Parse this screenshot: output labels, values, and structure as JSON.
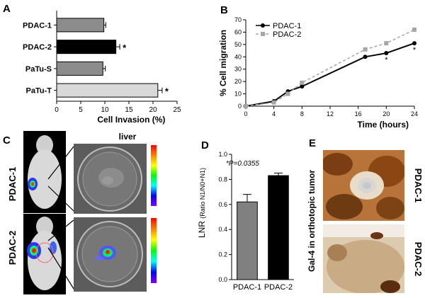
{
  "panel_labels": {
    "a": "A",
    "b": "B",
    "c": "C",
    "d": "D",
    "e": "E"
  },
  "chart_data": [
    {
      "panel": "A",
      "type": "bar",
      "orientation": "horizontal",
      "categories": [
        "PDAC-1",
        "PDAC-2",
        "PaTu-S",
        "PaTu-T"
      ],
      "values": [
        9.8,
        12.3,
        9.6,
        21
      ],
      "errors": [
        0.4,
        0.8,
        0.5,
        0.9
      ],
      "significance": [
        "",
        "*",
        "",
        "*"
      ],
      "colors": [
        "#8c8c8c",
        "#000000",
        "#8c8c8c",
        "#d9d9d9"
      ],
      "xlabel": "Cell Invasion (%)",
      "ylabel": "",
      "xlim": [
        0,
        25
      ],
      "xticks": [
        0,
        5,
        10,
        15,
        20,
        25
      ]
    },
    {
      "panel": "B",
      "type": "line",
      "xlabel": "Time (hours)",
      "ylabel": "% Cell migration",
      "xlim": [
        0,
        24
      ],
      "ylim": [
        0,
        70
      ],
      "xticks": [
        0,
        4,
        8,
        12,
        16,
        20,
        24
      ],
      "yticks": [
        0,
        10,
        20,
        30,
        40,
        50,
        60,
        70
      ],
      "legend_position": "top-left",
      "series": [
        {
          "name": "PDAC-1",
          "color": "#000000",
          "dash": "solid",
          "x": [
            0,
            4,
            6,
            8,
            17,
            20,
            24
          ],
          "y": [
            0,
            4,
            12,
            16,
            40,
            43,
            51
          ]
        },
        {
          "name": "PDAC-2",
          "color": "#a6a6a6",
          "dash": "dashed",
          "x": [
            0,
            4,
            6,
            8,
            17,
            20,
            24
          ],
          "y": [
            0,
            3,
            10,
            19,
            46,
            51,
            62
          ]
        }
      ],
      "significance_markers": [
        {
          "x": 20,
          "y": 43,
          "label": "*"
        },
        {
          "x": 24,
          "y": 51,
          "label": "*"
        }
      ]
    },
    {
      "panel": "D",
      "type": "bar",
      "categories": [
        "PDAC-1",
        "PDAC-2"
      ],
      "values": [
        0.62,
        0.83
      ],
      "errors": [
        0.06,
        0.02
      ],
      "colors": [
        "#808080",
        "#000000"
      ],
      "ylabel_main": "LNR",
      "ylabel_sub": "(Ratio N1/N0+N1)",
      "ylim": [
        0,
        1.0
      ],
      "yticks": [
        0.0,
        0.2,
        0.4,
        0.6,
        0.8,
        1.0
      ],
      "ytick_labels": [
        "0.0",
        "0.2",
        "0.4",
        "0.6",
        "0.8",
        "1.0"
      ],
      "annotation": "*P=0.0355"
    }
  ],
  "panel_c": {
    "liver_label": "liver",
    "row_labels": [
      "PDAC-1",
      "PDAC-2"
    ],
    "scalebar_colors": [
      "#ff0000",
      "#ff8000",
      "#ffff00",
      "#00ff00",
      "#00ffff",
      "#0000ff",
      "#8000ff"
    ]
  },
  "panel_e": {
    "ylabel": "Gal-4 in orthotopic tumor",
    "row_labels": [
      "PDAC-1",
      "PDAC-2"
    ]
  }
}
